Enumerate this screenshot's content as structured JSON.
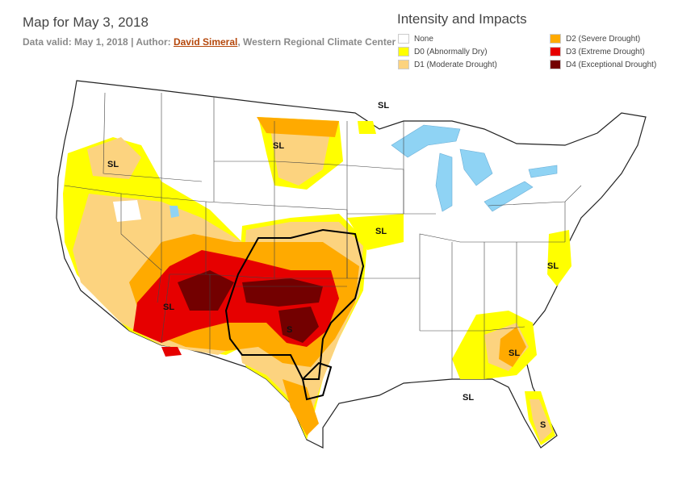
{
  "header": {
    "title": "Map for May 3, 2018",
    "subtitle_prefix": "Data valid: May 1, 2018 | Author: ",
    "author": "David Simeral",
    "subtitle_suffix": ", Western Regional Climate Center"
  },
  "legend": {
    "title": "Intensity and Impacts",
    "items": [
      {
        "label": "None",
        "color": "#ffffff"
      },
      {
        "label": "D0 (Abnormally Dry)",
        "color": "#ffff00"
      },
      {
        "label": "D1 (Moderate Drought)",
        "color": "#fcd37f"
      },
      {
        "label": "D2 (Severe Drought)",
        "color": "#ffaa00"
      },
      {
        "label": "D3 (Extreme Drought)",
        "color": "#e60000"
      },
      {
        "label": "D4 (Exceptional Drought)",
        "color": "#730000"
      }
    ]
  },
  "map": {
    "water_color": "#8fd3f4",
    "impact_labels": [
      "SL",
      "SL",
      "SL",
      "SL",
      "SL",
      "SL",
      "SL",
      "S",
      "S"
    ]
  }
}
